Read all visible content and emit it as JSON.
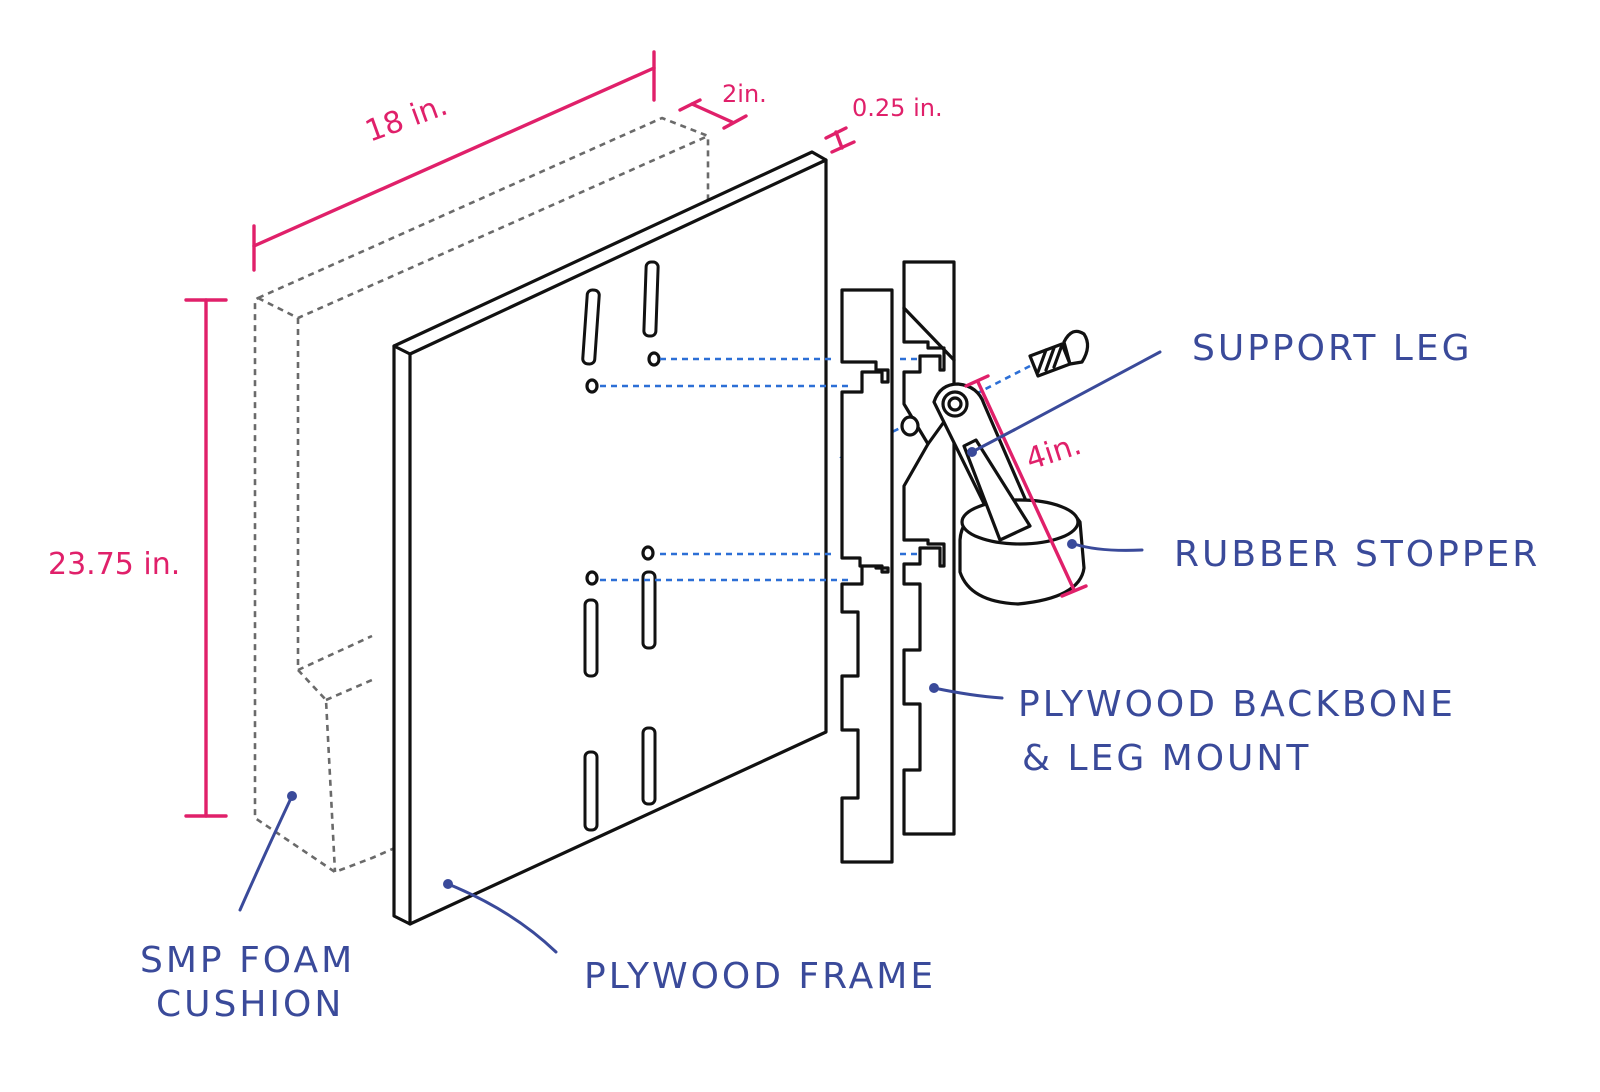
{
  "dimensions": {
    "width": "18 in.",
    "height": "23.75 in.",
    "depth": "2in.",
    "thickness": "0.25 in.",
    "leg_length": "4in."
  },
  "labels": {
    "support_leg": "SUPPORT LEG",
    "rubber_stopper": "RUBBER STOPPER",
    "backbone_line1": "PLYWOOD BACKBONE",
    "backbone_line2": "& LEG MOUNT",
    "plywood_frame": "PLYWOOD FRAME",
    "foam_line1": "SMP FOAM",
    "foam_line2": "CUSHION"
  },
  "colors": {
    "ink": "#111111",
    "dimension": "#e0206a",
    "label": "#3a4a9a",
    "guide": "#2c6fd6",
    "hidden_line": "#6a6a6a"
  }
}
